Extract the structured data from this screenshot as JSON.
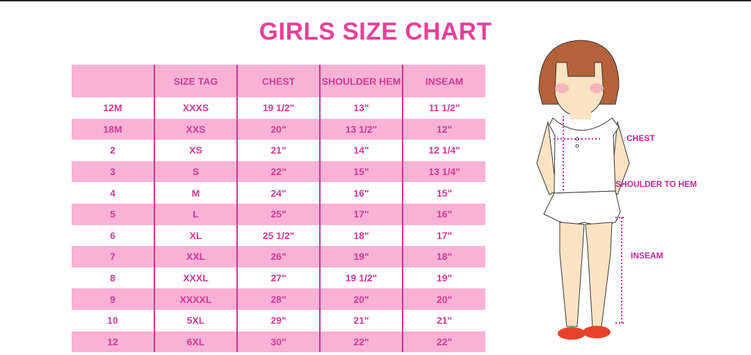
{
  "title": "GIRLS SIZE CHART",
  "table": {
    "headers": [
      "",
      "SIZE TAG",
      "CHEST",
      "SHOULDER HEM",
      "INSEAM"
    ],
    "rows": [
      [
        "12M",
        "XXXS",
        "19 1/2\"",
        "13\"",
        "11 1/2\""
      ],
      [
        "18M",
        "XXS",
        "20\"",
        "13 1/2\"",
        "12\""
      ],
      [
        "2",
        "XS",
        "21\"",
        "14\"",
        "12 1/4\""
      ],
      [
        "3",
        "S",
        "22\"",
        "15\"",
        "13 1/4\""
      ],
      [
        "4",
        "M",
        "24\"",
        "16\"",
        "15\""
      ],
      [
        "5",
        "L",
        "25\"",
        "17\"",
        "16\""
      ],
      [
        "6",
        "XL",
        "25 1/2\"",
        "18\"",
        "17\""
      ],
      [
        "7",
        "XXL",
        "26\"",
        "19\"",
        "18\""
      ],
      [
        "8",
        "XXXL",
        "27\"",
        "19 1/2\"",
        "19\""
      ],
      [
        "9",
        "XXXXL",
        "28\"",
        "20\"",
        "20\""
      ],
      [
        "10",
        "5XL",
        "29\"",
        "21\"",
        "21\""
      ],
      [
        "12",
        "6XL",
        "30\"",
        "22\"",
        "22\""
      ]
    ]
  },
  "figure": {
    "labels": {
      "chest": "CHEST",
      "shoulder_to_hem": "SHOULDER TO HEM",
      "inseam": "INSEAM"
    }
  },
  "colors": {
    "title": "#e6409a",
    "text": "#d23a92",
    "row_pink": "#f9b2d5",
    "measure": "#c3279a"
  }
}
